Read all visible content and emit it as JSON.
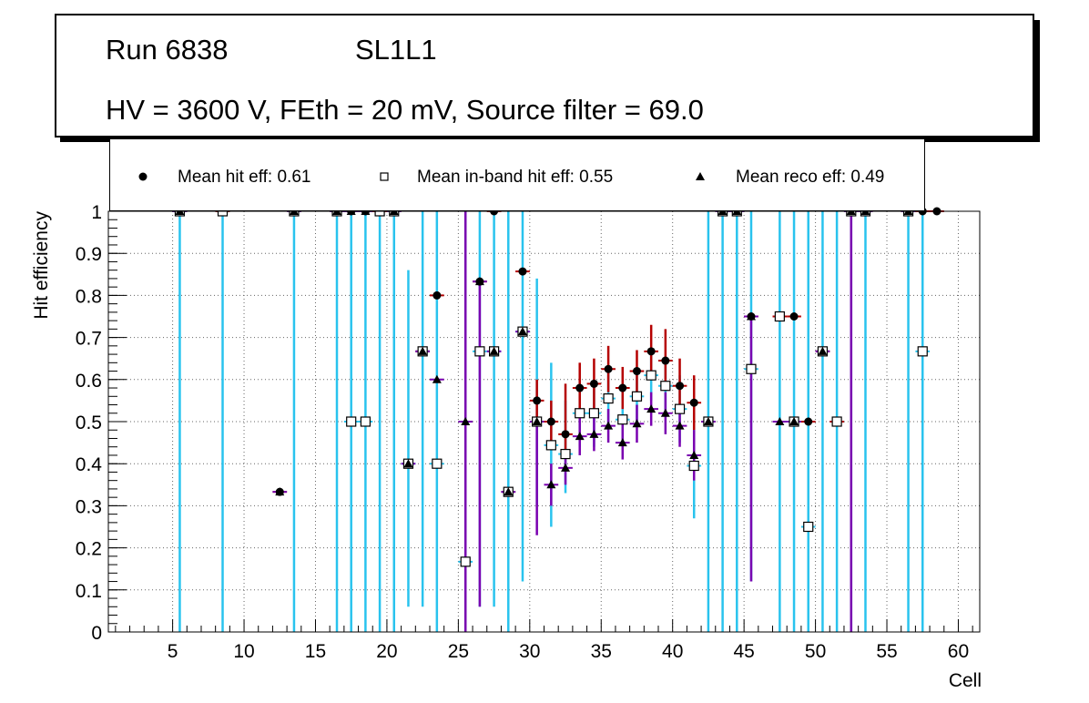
{
  "header": {
    "run_label": "Run 6838",
    "layer_label": "SL1L1",
    "conditions": "HV = 3600 V, FEth = 20 mV, Source filter = 69.0"
  },
  "legend": {
    "hit": "Mean hit  eff: 0.61",
    "inband": "Mean in-band hit eff: 0.55",
    "reco": "Mean reco eff: 0.49"
  },
  "colors": {
    "cyan": "#29c3ee",
    "red": "#b50000",
    "purple": "#7a00b0",
    "black": "#000000"
  },
  "chart_data": {
    "type": "scatter",
    "title": "",
    "xlabel": "Cell",
    "ylabel": "Hit efficiency",
    "xlim": [
      0.5,
      61.5
    ],
    "ylim": [
      0,
      1
    ],
    "x_ticks": [
      5,
      10,
      15,
      20,
      25,
      30,
      35,
      40,
      45,
      50,
      55,
      60
    ],
    "y_ticks": [
      0,
      0.1,
      0.2,
      0.3,
      0.4,
      0.5,
      0.6,
      0.7,
      0.8,
      0.9,
      1
    ],
    "grid": true,
    "x_ticks_labels": [
      "5",
      "10",
      "15",
      "20",
      "25",
      "30",
      "35",
      "40",
      "45",
      "50",
      "55",
      "60"
    ],
    "y_ticks_labels": [
      "0",
      "0.1",
      "0.2",
      "0.3",
      "0.4",
      "0.5",
      "0.6",
      "0.7",
      "0.8",
      "0.9",
      "1"
    ],
    "series": [
      {
        "name": "Mean hit  eff: 0.61",
        "marker": "filled-circle",
        "error_color": "red",
        "points": [
          [
            5.5,
            1,
            1,
            1
          ],
          [
            8.5,
            1,
            1,
            1
          ],
          [
            12.5,
            0.333,
            0.333,
            0.333
          ],
          [
            13.5,
            1,
            1,
            1
          ],
          [
            16.5,
            1,
            1,
            1
          ],
          [
            17.5,
            1,
            1,
            1
          ],
          [
            18.5,
            1,
            1,
            1
          ],
          [
            19.5,
            1,
            1,
            1
          ],
          [
            20.5,
            1,
            1,
            1
          ],
          [
            22.5,
            0.667,
            0.667,
            0.667
          ],
          [
            23.5,
            0.8,
            0.8,
            0.8
          ],
          [
            26.5,
            0.833,
            0.833,
            0.833
          ],
          [
            27.5,
            1,
            1,
            1
          ],
          [
            28.5,
            0.333,
            0.333,
            0.333
          ],
          [
            29.5,
            0.857,
            0.857,
            0.857
          ],
          [
            30.5,
            0.55,
            0.5,
            0.6
          ],
          [
            31.5,
            0.5,
            0.45,
            0.55
          ],
          [
            32.5,
            0.47,
            0.42,
            0.59
          ],
          [
            33.5,
            0.58,
            0.52,
            0.64
          ],
          [
            34.5,
            0.59,
            0.53,
            0.65
          ],
          [
            35.5,
            0.625,
            0.57,
            0.68
          ],
          [
            36.5,
            0.58,
            0.53,
            0.63
          ],
          [
            37.5,
            0.62,
            0.57,
            0.67
          ],
          [
            38.5,
            0.667,
            0.61,
            0.73
          ],
          [
            39.5,
            0.645,
            0.58,
            0.72
          ],
          [
            40.5,
            0.585,
            0.52,
            0.65
          ],
          [
            41.5,
            0.545,
            0.48,
            0.61
          ],
          [
            42.5,
            0.5,
            0.5,
            0.5
          ],
          [
            43.5,
            1,
            1,
            1
          ],
          [
            44.5,
            1,
            1,
            1
          ],
          [
            45.5,
            0.75,
            0.75,
            0.75
          ],
          [
            47.5,
            0.75,
            0.75,
            0.75
          ],
          [
            48.5,
            0.75,
            0.75,
            0.75
          ],
          [
            49.5,
            0.5,
            0.5,
            0.5
          ],
          [
            50.5,
            0.667,
            0.667,
            0.667
          ],
          [
            51.5,
            0.5,
            0.5,
            0.5
          ],
          [
            52.5,
            1,
            1,
            1
          ],
          [
            53.5,
            1,
            1,
            1
          ],
          [
            56.5,
            1,
            1,
            1
          ],
          [
            57.5,
            1,
            1,
            1
          ],
          [
            58.5,
            1,
            1,
            1
          ]
        ]
      },
      {
        "name": "Mean in-band hit eff: 0.55",
        "marker": "open-square",
        "error_color": "cyan",
        "points": [
          [
            5.5,
            1,
            0,
            1
          ],
          [
            8.5,
            1,
            0,
            1
          ],
          [
            13.5,
            1,
            0,
            1
          ],
          [
            16.5,
            1,
            0,
            1
          ],
          [
            17.5,
            0.5,
            0,
            1
          ],
          [
            18.5,
            0.5,
            0,
            1
          ],
          [
            19.5,
            1,
            0,
            1
          ],
          [
            20.5,
            1,
            0,
            1
          ],
          [
            21.5,
            0.4,
            0.06,
            0.86
          ],
          [
            22.5,
            0.667,
            0.06,
            1
          ],
          [
            23.5,
            0.4,
            0,
            1
          ],
          [
            25.5,
            0.167,
            0,
            1
          ],
          [
            26.5,
            0.667,
            0.06,
            1
          ],
          [
            27.5,
            0.667,
            0.06,
            1
          ],
          [
            28.5,
            0.333,
            0,
            1
          ],
          [
            29.5,
            0.714,
            0.12,
            1
          ],
          [
            30.5,
            0.5,
            0.3,
            0.84
          ],
          [
            31.5,
            0.444,
            0.25,
            0.64
          ],
          [
            32.5,
            0.423,
            0.33,
            0.55
          ],
          [
            33.5,
            0.52,
            0.44,
            0.6
          ],
          [
            34.5,
            0.52,
            0.44,
            0.6
          ],
          [
            35.5,
            0.555,
            0.49,
            0.62
          ],
          [
            36.5,
            0.505,
            0.44,
            0.57
          ],
          [
            37.5,
            0.56,
            0.5,
            0.62
          ],
          [
            38.5,
            0.61,
            0.55,
            0.67
          ],
          [
            39.5,
            0.585,
            0.52,
            0.65
          ],
          [
            40.5,
            0.53,
            0.45,
            0.61
          ],
          [
            41.5,
            0.395,
            0.27,
            0.52
          ],
          [
            42.5,
            0.5,
            0,
            1
          ],
          [
            43.5,
            1,
            0,
            1
          ],
          [
            44.5,
            1,
            0,
            1
          ],
          [
            45.5,
            0.625,
            0.12,
            1
          ],
          [
            47.5,
            0.75,
            0,
            1
          ],
          [
            48.5,
            0.5,
            0,
            1
          ],
          [
            49.5,
            0.25,
            0,
            1
          ],
          [
            50.5,
            0.667,
            0,
            1
          ],
          [
            51.5,
            0.5,
            0,
            1
          ],
          [
            52.5,
            1,
            0,
            1
          ],
          [
            53.5,
            1,
            0,
            1
          ],
          [
            56.5,
            1,
            0,
            1
          ],
          [
            57.5,
            0.667,
            0,
            1
          ]
        ]
      },
      {
        "name": "Mean reco eff: 0.49",
        "marker": "filled-triangle",
        "error_color": "purple",
        "points": [
          [
            5.5,
            1,
            1,
            1
          ],
          [
            12.5,
            0.333,
            0.333,
            0.333
          ],
          [
            13.5,
            1,
            1,
            1
          ],
          [
            16.5,
            1,
            1,
            1
          ],
          [
            17.5,
            1,
            1,
            1
          ],
          [
            18.5,
            1,
            1,
            1
          ],
          [
            20.5,
            1,
            1,
            1
          ],
          [
            21.5,
            0.4,
            0.4,
            0.4
          ],
          [
            22.5,
            0.667,
            0.667,
            0.667
          ],
          [
            23.5,
            0.6,
            0.6,
            0.6
          ],
          [
            25.5,
            0.5,
            0,
            1
          ],
          [
            26.5,
            0.833,
            0.06,
            0.833
          ],
          [
            27.5,
            0.667,
            0.667,
            0.667
          ],
          [
            28.5,
            0.333,
            0.333,
            0.333
          ],
          [
            29.5,
            0.714,
            0.714,
            0.714
          ],
          [
            30.5,
            0.5,
            0.23,
            0.5
          ],
          [
            31.5,
            0.35,
            0.3,
            0.4
          ],
          [
            32.5,
            0.39,
            0.35,
            0.43
          ],
          [
            33.5,
            0.465,
            0.42,
            0.51
          ],
          [
            34.5,
            0.47,
            0.43,
            0.52
          ],
          [
            35.5,
            0.49,
            0.45,
            0.53
          ],
          [
            36.5,
            0.45,
            0.41,
            0.5
          ],
          [
            37.5,
            0.495,
            0.45,
            0.54
          ],
          [
            38.5,
            0.53,
            0.49,
            0.57
          ],
          [
            39.5,
            0.52,
            0.47,
            0.57
          ],
          [
            40.5,
            0.49,
            0.44,
            0.54
          ],
          [
            41.5,
            0.42,
            0.36,
            0.48
          ],
          [
            42.5,
            0.5,
            0.5,
            0.5
          ],
          [
            43.5,
            1,
            1,
            1
          ],
          [
            44.5,
            1,
            1,
            1
          ],
          [
            45.5,
            0.75,
            0.12,
            0.75
          ],
          [
            47.5,
            0.5,
            0.5,
            0.5
          ],
          [
            48.5,
            0.5,
            0.5,
            0.5
          ],
          [
            50.5,
            0.667,
            0.667,
            0.667
          ],
          [
            52.5,
            1,
            0,
            1
          ],
          [
            53.5,
            1,
            1,
            1
          ],
          [
            56.5,
            1,
            1,
            1
          ]
        ]
      }
    ]
  }
}
